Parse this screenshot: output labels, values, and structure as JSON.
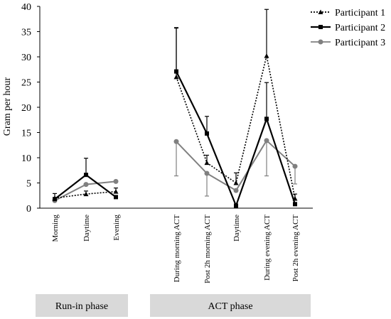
{
  "chart_data": {
    "type": "line",
    "title": "",
    "xlabel": "",
    "ylabel": "Gram per hour",
    "ylim": [
      0,
      40
    ],
    "yticks": [
      0,
      5,
      10,
      15,
      20,
      25,
      30,
      35,
      40
    ],
    "grid": false,
    "legend_position": "top-right",
    "groups": [
      {
        "label": "Run-in phase",
        "categories": [
          "Morning",
          "Daytime",
          "Evening"
        ]
      },
      {
        "label": "ACT phase",
        "categories": [
          "During morning ACT",
          "Post 2h morning ACT",
          "Daytime",
          "During  evening ACT",
          "Post 2h evening  ACT"
        ]
      }
    ],
    "series": [
      {
        "name": "Participant 1",
        "color": "#000000",
        "dash": "dotted",
        "marker": "triangle",
        "values": [
          [
            2.0,
            2.8,
            3.3
          ],
          [
            26.0,
            9.0,
            5.0,
            30.2,
            1.9
          ]
        ],
        "err_plus": [
          [
            0.9,
            0.6,
            0.7
          ],
          [
            9.8,
            1.5,
            2.0,
            9.2,
            0.9
          ]
        ],
        "err_minus": [
          [
            0,
            0,
            0
          ],
          [
            0,
            0,
            0,
            0,
            0
          ]
        ]
      },
      {
        "name": "Participant 2",
        "color": "#000000",
        "dash": "solid",
        "marker": "square",
        "values": [
          [
            1.8,
            6.6,
            2.2
          ],
          [
            27.1,
            14.8,
            0.5,
            17.7,
            0.8
          ]
        ],
        "err_plus": [
          [
            0,
            3.3,
            0
          ],
          [
            8.6,
            3.4,
            0,
            7.2,
            0
          ]
        ],
        "err_minus": [
          [
            0,
            0,
            0
          ],
          [
            0,
            0,
            0,
            0,
            0
          ]
        ]
      },
      {
        "name": "Participant 3",
        "color": "#808080",
        "dash": "solid",
        "marker": "circle",
        "values": [
          [
            1.5,
            4.7,
            5.3
          ],
          [
            13.2,
            6.9,
            3.5,
            13.4,
            8.3
          ]
        ],
        "err_plus": [
          [
            0,
            0,
            0
          ],
          [
            0,
            0,
            0,
            0,
            0
          ]
        ],
        "err_minus": [
          [
            0,
            0,
            0
          ],
          [
            6.8,
            4.5,
            0,
            7.0,
            3.5
          ]
        ]
      }
    ]
  }
}
